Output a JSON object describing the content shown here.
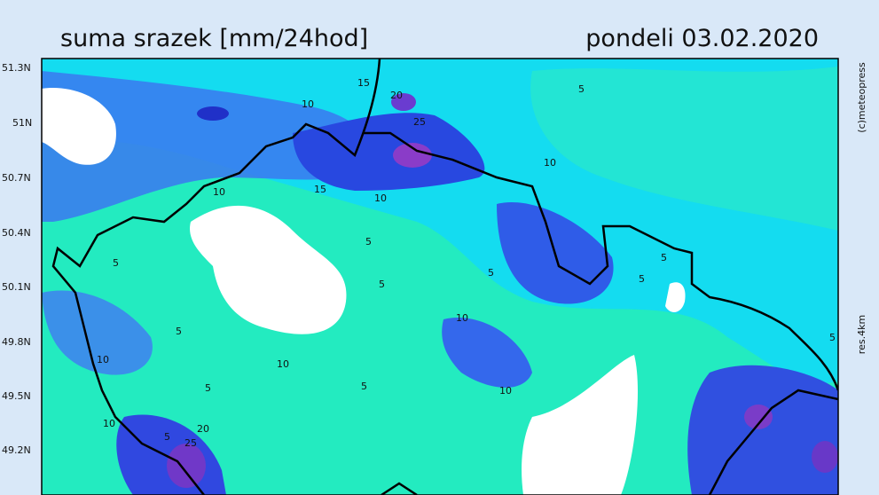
{
  "header": {
    "title": "suma srazek [mm/24hod]",
    "date": "pondeli 03.02.2020"
  },
  "latitude_labels": [
    "51.3N",
    "51N",
    "50.7N",
    "50.4N",
    "50.1N",
    "49.8N",
    "49.5N",
    "49.2N"
  ],
  "credit": "(c)meteopress",
  "resolution": "res.4km",
  "contour_labels": [
    "5",
    "10",
    "15",
    "20",
    "25",
    "10",
    "15",
    "10",
    "10",
    "5",
    "5",
    "5",
    "5",
    "5",
    "5",
    "10",
    "5",
    "10",
    "10",
    "5",
    "5",
    "10",
    "10",
    "5",
    "20",
    "25",
    "5"
  ]
}
